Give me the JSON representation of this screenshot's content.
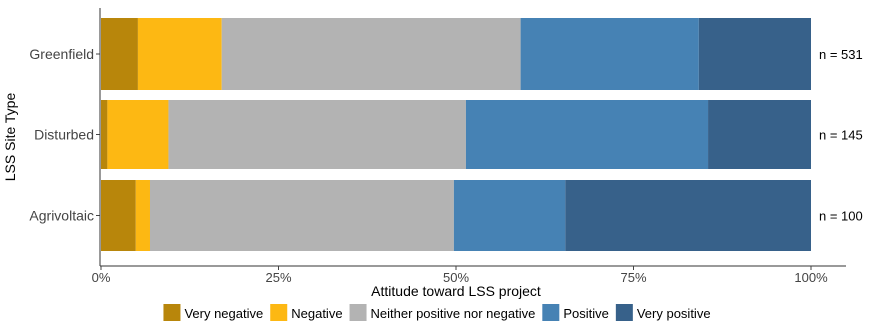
{
  "chart_data": {
    "type": "bar",
    "orientation": "horizontal",
    "stacked": "percent",
    "xlabel": "Attitude toward LSS project",
    "ylabel": "LSS Site Type",
    "xlim": [
      0,
      100
    ],
    "xticks": [
      "0%",
      "25%",
      "50%",
      "75%",
      "100%"
    ],
    "grid": false,
    "legend_position": "bottom",
    "categories": [
      "Greenfield",
      "Disturbed",
      "Agrivoltaic"
    ],
    "sample_labels": [
      "n =  531",
      "n =  145",
      "n =  100"
    ],
    "series": [
      {
        "name": "Very negative",
        "color": "#B8860B",
        "values": [
          5.2,
          0.9,
          4.9
        ]
      },
      {
        "name": "Negative",
        "color": "#FDB813",
        "values": [
          11.8,
          8.6,
          2.0
        ]
      },
      {
        "name": "Neither positive nor negative",
        "color": "#B3B3B3",
        "values": [
          42.1,
          41.9,
          42.8
        ]
      },
      {
        "name": "Positive",
        "color": "#4682B4",
        "values": [
          25.1,
          34.1,
          15.7
        ]
      },
      {
        "name": "Very positive",
        "color": "#37618A",
        "values": [
          15.8,
          14.5,
          34.6
        ]
      }
    ]
  }
}
